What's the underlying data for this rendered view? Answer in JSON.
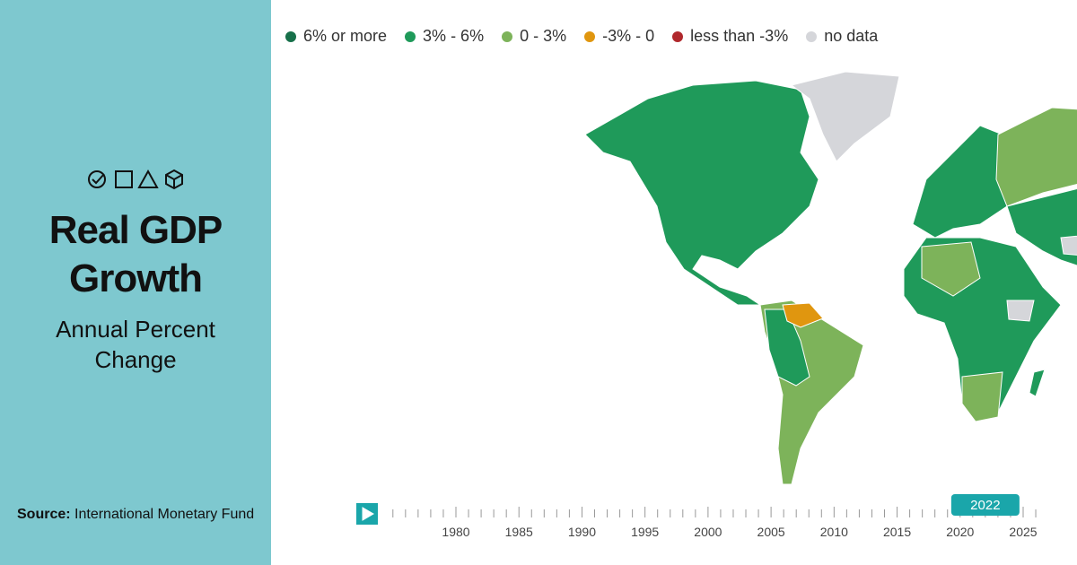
{
  "sidebar": {
    "title": "Real GDP Growth",
    "subtitle": "Annual Percent Change",
    "source_label": "Source:",
    "source": "International Monetary Fund"
  },
  "legend": [
    {
      "label": "6% or more",
      "color": "#17704a"
    },
    {
      "label": "3% - 6%",
      "color": "#1f9a5a"
    },
    {
      "label": "0 - 3%",
      "color": "#7db35a"
    },
    {
      "label": "-3% - 0",
      "color": "#e0960f"
    },
    {
      "label": "less than -3%",
      "color": "#b0282c"
    },
    {
      "label": "no data",
      "color": "#d5d6da"
    }
  ],
  "timeline": {
    "selected": 2022,
    "ticks": [
      1980,
      1985,
      1990,
      1995,
      2000,
      2005,
      2010,
      2015,
      2020,
      2025
    ]
  }
}
